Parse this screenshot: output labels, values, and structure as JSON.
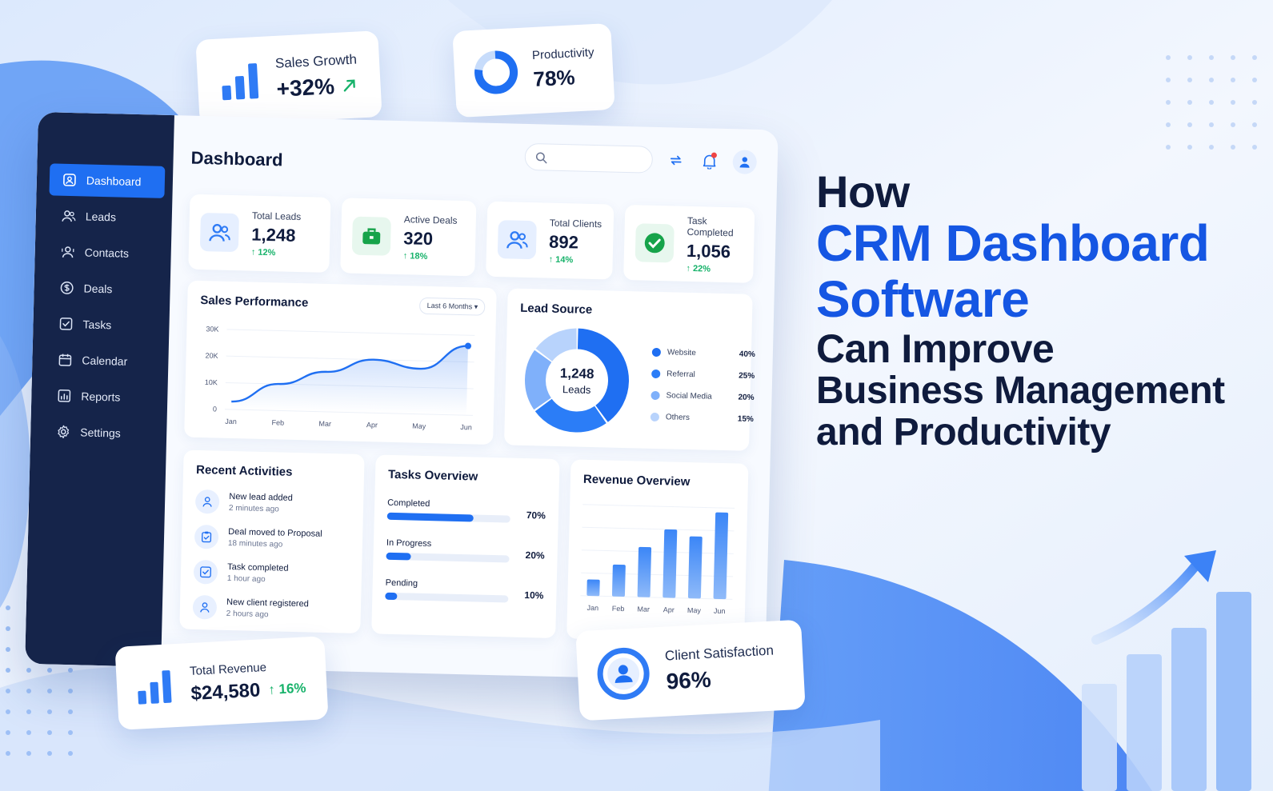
{
  "colors": {
    "primary": "#1f6ff2",
    "headline_blue": "#1556e3",
    "navy": "#15244a",
    "success": "#17b26a",
    "alert": "#ef4444"
  },
  "floating": {
    "sales_growth": {
      "label": "Sales Growth",
      "value": "+32%",
      "icon": "bar-chart-icon",
      "trend_icon": "arrow-up-right-icon"
    },
    "productivity": {
      "label": "Productivity",
      "value": "78%",
      "fill": 0.78,
      "icon": "donut-icon"
    },
    "total_revenue": {
      "label": "Total Revenue",
      "value": "$24,580",
      "delta": "16%",
      "icon": "bar-chart-icon"
    },
    "client_satisfaction": {
      "label": "Client Satisfaction",
      "value": "96%",
      "icon": "user-ring-icon"
    }
  },
  "sidebar": {
    "items": [
      {
        "label": "Dashboard",
        "icon": "dashboard-icon",
        "active": true
      },
      {
        "label": "Leads",
        "icon": "users-icon"
      },
      {
        "label": "Contacts",
        "icon": "contacts-icon"
      },
      {
        "label": "Deals",
        "icon": "dollar-icon"
      },
      {
        "label": "Tasks",
        "icon": "checkbox-icon"
      },
      {
        "label": "Calendar",
        "icon": "calendar-icon"
      },
      {
        "label": "Reports",
        "icon": "report-icon"
      },
      {
        "label": "Settings",
        "icon": "gear-icon"
      }
    ]
  },
  "header": {
    "title": "Dashboard",
    "search_placeholder": "",
    "icons": [
      "search-icon",
      "refresh-icon",
      "bell-icon",
      "avatar-icon"
    ]
  },
  "kpis": [
    {
      "label": "Total Leads",
      "value": "1,248",
      "delta": "12%",
      "icon": "users-icon",
      "color": "#2f7bf5"
    },
    {
      "label": "Active Deals",
      "value": "320",
      "delta": "18%",
      "icon": "briefcase-icon",
      "color": "#16a34a"
    },
    {
      "label": "Total Clients",
      "value": "892",
      "delta": "14%",
      "icon": "users-icon",
      "color": "#2f7bf5"
    },
    {
      "label": "Task Completed",
      "value": "1,056",
      "delta": "22%",
      "icon": "check-circle-icon",
      "color": "#16a34a"
    }
  ],
  "sales_performance": {
    "title": "Sales Performance",
    "range_label": "Last 6 Months"
  },
  "lead_source": {
    "title": "Lead Source",
    "center_value": "1,248",
    "center_label": "Leads"
  },
  "recent_activities": {
    "title": "Recent Activities",
    "items": [
      {
        "title": "New lead added",
        "time": "2 minutes ago",
        "icon": "user-icon"
      },
      {
        "title": "Deal moved to Proposal",
        "time": "18 minutes ago",
        "icon": "clipboard-icon"
      },
      {
        "title": "Task completed",
        "time": "1 hour ago",
        "icon": "checkbox-icon"
      },
      {
        "title": "New client registered",
        "time": "2 hours ago",
        "icon": "user-icon"
      }
    ]
  },
  "tasks_overview": {
    "title": "Tasks Overview",
    "items": [
      {
        "label": "Completed",
        "pct": "70%",
        "value": 70
      },
      {
        "label": "In Progress",
        "pct": "20%",
        "value": 20
      },
      {
        "label": "Pending",
        "pct": "10%",
        "value": 10
      }
    ]
  },
  "revenue_overview": {
    "title": "Revenue Overview"
  },
  "chart_data": [
    {
      "type": "line",
      "x": [
        "Jan",
        "Feb",
        "Mar",
        "Apr",
        "May",
        "Jun"
      ],
      "y_ticks": [
        "30K",
        "20K",
        "10K",
        "0"
      ],
      "ylim": [
        0,
        30000
      ],
      "series": [
        {
          "values": [
            3000,
            10000,
            15000,
            20000,
            17000,
            26000
          ]
        }
      ],
      "grid": true
    },
    {
      "type": "pie",
      "categories": [
        "Website",
        "Referral",
        "Social Media",
        "Others"
      ],
      "values": [
        40,
        25,
        20,
        15
      ],
      "labels": [
        "40%",
        "25%",
        "20%",
        "15%"
      ],
      "colors": [
        "#1f6ff2",
        "#2b7df7",
        "#7fb0fa",
        "#b8d3fc"
      ]
    },
    {
      "type": "bar",
      "categories": [
        "Jan",
        "Feb",
        "Mar",
        "Apr",
        "May",
        "Jun"
      ],
      "values": [
        18,
        35,
        55,
        75,
        68,
        95
      ],
      "ylim": [
        0,
        100
      ],
      "grid": true
    }
  ],
  "headline": {
    "line1": "How",
    "line2": "CRM Dashboard",
    "line3": "Software",
    "line4": "Can Improve",
    "line5": "Business Management",
    "line6": "and Productivity"
  }
}
